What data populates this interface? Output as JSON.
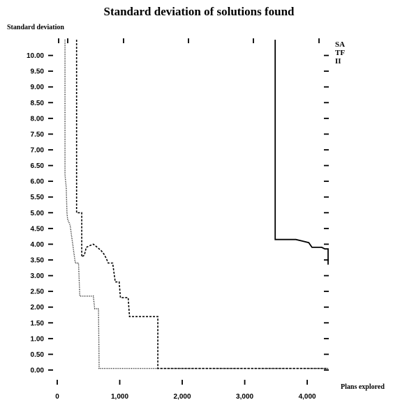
{
  "chart_data": {
    "type": "line",
    "title": "Standard deviation of solutions found",
    "ylabel": "Standard deviation",
    "xlabel": "Plans explored",
    "xlim": [
      0,
      4200
    ],
    "ylim": [
      0,
      10.5
    ],
    "x_ticks": [
      0,
      1000,
      2000,
      3000,
      4000
    ],
    "x_tick_labels": [
      "0",
      "1,000",
      "2,000",
      "3,000",
      "4,000"
    ],
    "y_ticks": [
      0,
      0.5,
      1,
      1.5,
      2,
      2.5,
      3,
      3.5,
      4,
      4.5,
      5,
      5.5,
      6,
      6.5,
      7,
      7.5,
      8,
      8.5,
      9,
      9.5,
      10
    ],
    "y_tick_labels": [
      "0.00",
      "0.50",
      "1.00",
      "1.50",
      "2.00",
      "2.50",
      "3.00",
      "3.50",
      "4.00",
      "4.50",
      "5.00",
      "5.50",
      "6.00",
      "6.50",
      "7.00",
      "7.50",
      "8.00",
      "8.50",
      "9.00",
      "9.50",
      "10.00"
    ],
    "legend_position": "top-right",
    "series": [
      {
        "name": "SA",
        "style": "solid",
        "color": "#000000",
        "points": [
          [
            3380,
            10.5
          ],
          [
            3380,
            4.15
          ],
          [
            3700,
            4.15
          ],
          [
            3800,
            4.1
          ],
          [
            3900,
            4.05
          ],
          [
            3950,
            3.9
          ],
          [
            4100,
            3.9
          ],
          [
            4150,
            3.85
          ],
          [
            4200,
            3.85
          ],
          [
            4200,
            3.35
          ]
        ]
      },
      {
        "name": "TF",
        "style": "dashed",
        "color": "#000000",
        "points": [
          [
            300,
            10.5
          ],
          [
            300,
            5.0
          ],
          [
            380,
            5.0
          ],
          [
            380,
            3.6
          ],
          [
            420,
            3.65
          ],
          [
            450,
            3.9
          ],
          [
            500,
            3.95
          ],
          [
            560,
            4.0
          ],
          [
            620,
            3.9
          ],
          [
            680,
            3.8
          ],
          [
            720,
            3.7
          ],
          [
            760,
            3.55
          ],
          [
            790,
            3.4
          ],
          [
            860,
            3.4
          ],
          [
            900,
            2.8
          ],
          [
            960,
            2.8
          ],
          [
            980,
            2.3
          ],
          [
            1100,
            2.3
          ],
          [
            1120,
            1.7
          ],
          [
            1560,
            1.7
          ],
          [
            1560,
            0.05
          ],
          [
            4200,
            0.05
          ]
        ]
      },
      {
        "name": "II",
        "style": "dotted",
        "color": "#000000",
        "points": [
          [
            120,
            10.5
          ],
          [
            120,
            6.2
          ],
          [
            140,
            5.8
          ],
          [
            150,
            5.0
          ],
          [
            160,
            4.8
          ],
          [
            180,
            4.7
          ],
          [
            200,
            4.6
          ],
          [
            220,
            4.3
          ],
          [
            240,
            4.0
          ],
          [
            260,
            3.7
          ],
          [
            280,
            3.4
          ],
          [
            330,
            3.4
          ],
          [
            350,
            2.35
          ],
          [
            560,
            2.35
          ],
          [
            580,
            1.95
          ],
          [
            640,
            1.95
          ],
          [
            650,
            0.05
          ],
          [
            4200,
            0.05
          ]
        ]
      }
    ]
  }
}
